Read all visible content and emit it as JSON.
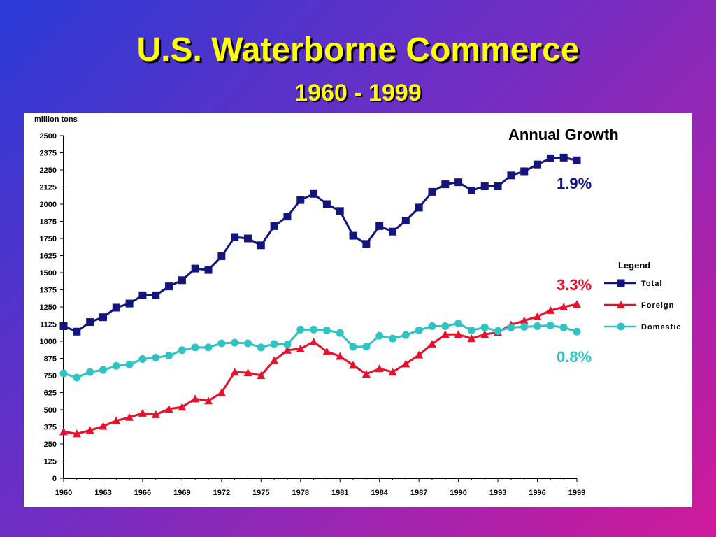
{
  "title": "U.S. Waterborne Commerce",
  "subtitle": "1960 - 1999",
  "growth": {
    "title": "Annual Growth",
    "total": "1.9%",
    "foreign": "3.3%",
    "domestic": "0.8%"
  },
  "colors": {
    "total": "#12157e",
    "foreign": "#e8102a",
    "domestic": "#2fc3c3",
    "title": "#ffff00"
  },
  "chart_data": {
    "type": "line",
    "ylabel": "million tons",
    "ylim": [
      0,
      2500
    ],
    "xlim": [
      1960,
      1999
    ],
    "yticks": [
      0,
      125,
      250,
      375,
      500,
      625,
      750,
      875,
      1000,
      1125,
      1250,
      1375,
      1500,
      1625,
      1750,
      1875,
      2000,
      2125,
      2250,
      2375,
      2500
    ],
    "xticks": [
      1960,
      1963,
      1966,
      1969,
      1972,
      1975,
      1978,
      1981,
      1984,
      1987,
      1990,
      1993,
      1996,
      1999
    ],
    "legend_title": "Legend",
    "legend_position": "right",
    "grid": false,
    "x": [
      1960,
      1961,
      1962,
      1963,
      1964,
      1965,
      1966,
      1967,
      1968,
      1969,
      1970,
      1971,
      1972,
      1973,
      1974,
      1975,
      1976,
      1977,
      1978,
      1979,
      1980,
      1981,
      1982,
      1983,
      1984,
      1985,
      1986,
      1987,
      1988,
      1989,
      1990,
      1991,
      1992,
      1993,
      1994,
      1995,
      1996,
      1997,
      1998,
      1999
    ],
    "series": [
      {
        "name": "Total",
        "marker": "square",
        "values": [
          1110,
          1070,
          1140,
          1175,
          1245,
          1275,
          1335,
          1335,
          1400,
          1445,
          1530,
          1520,
          1620,
          1760,
          1750,
          1700,
          1840,
          1910,
          2030,
          2075,
          2000,
          1950,
          1770,
          1710,
          1840,
          1800,
          1880,
          1975,
          2090,
          2145,
          2160,
          2100,
          2130,
          2130,
          2210,
          2240,
          2290,
          2335,
          2340,
          2320
        ]
      },
      {
        "name": "Foreign",
        "marker": "triangle",
        "values": [
          340,
          325,
          350,
          380,
          420,
          445,
          475,
          465,
          505,
          520,
          580,
          565,
          625,
          775,
          770,
          750,
          860,
          935,
          945,
          995,
          925,
          890,
          825,
          760,
          800,
          775,
          835,
          900,
          980,
          1050,
          1050,
          1020,
          1050,
          1065,
          1120,
          1150,
          1180,
          1225,
          1250,
          1270
        ]
      },
      {
        "name": "Domestic",
        "marker": "circle",
        "values": [
          765,
          735,
          775,
          790,
          820,
          830,
          870,
          880,
          895,
          935,
          955,
          955,
          985,
          990,
          985,
          955,
          980,
          975,
          1085,
          1085,
          1080,
          1060,
          960,
          960,
          1040,
          1020,
          1045,
          1080,
          1110,
          1110,
          1130,
          1080,
          1100,
          1075,
          1100,
          1105,
          1110,
          1115,
          1100,
          1070
        ]
      }
    ]
  }
}
